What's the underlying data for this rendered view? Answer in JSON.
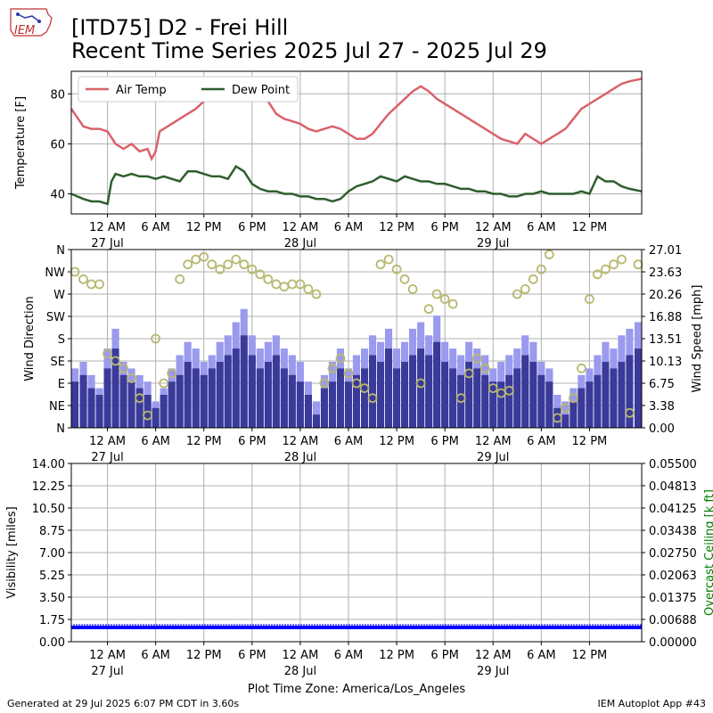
{
  "logo": {
    "text": "IEM"
  },
  "title_line1": "[ITD75] D2 - Frei Hill",
  "title_line2": "Recent Time Series 2025 Jul 27 - 2025 Jul 29",
  "footer_left": "Generated at 29 Jul 2025 6:07 PM CDT in 3.60s",
  "footer_right": "IEM Autoplot App #43",
  "xlabel_bottom": "Plot Time Zone: America/Los_Angeles",
  "colors": {
    "air_temp": "#d9626a",
    "dew_point": "#2e5e2e",
    "gust": "#9a9aee",
    "speed": "#3a3a9a",
    "direction_marker": "#b8b870",
    "visibility": "#0000ff",
    "ceiling_label": "#008000",
    "grid": "#b0b0b0"
  },
  "x_ticks": [
    {
      "hour": 0,
      "label": "12 AM",
      "date": "27 Jul"
    },
    {
      "hour": 6,
      "label": "6 AM",
      "date": ""
    },
    {
      "hour": 12,
      "label": "12 PM",
      "date": ""
    },
    {
      "hour": 18,
      "label": "6 PM",
      "date": ""
    },
    {
      "hour": 24,
      "label": "12 AM",
      "date": "28 Jul"
    },
    {
      "hour": 30,
      "label": "6 AM",
      "date": ""
    },
    {
      "hour": 36,
      "label": "12 PM",
      "date": ""
    },
    {
      "hour": 42,
      "label": "6 PM",
      "date": ""
    },
    {
      "hour": 48,
      "label": "12 AM",
      "date": "29 Jul"
    },
    {
      "hour": 54,
      "label": "6 AM",
      "date": ""
    },
    {
      "hour": 60,
      "label": "12 PM",
      "date": ""
    }
  ],
  "chart_data": [
    {
      "type": "line",
      "ylabel": "Temperature [F]",
      "ylim": [
        32,
        89
      ],
      "yticks": [
        40,
        60,
        80
      ],
      "xlim_hours": [
        -4.5,
        66.5
      ],
      "grid": true,
      "legend": "top-left",
      "series": [
        {
          "name": "Air Temp",
          "x": [
            -4.5,
            -3,
            -2,
            -1,
            0,
            1,
            2,
            3,
            4,
            5,
            5.5,
            6,
            6.5,
            7,
            8,
            9,
            10,
            11,
            12,
            13,
            14,
            15,
            16,
            17,
            18,
            19,
            20,
            21,
            22,
            23,
            24,
            25,
            26,
            27,
            28,
            29,
            30,
            31,
            32,
            33,
            34,
            35,
            36,
            37,
            38,
            39,
            40,
            41,
            42,
            43,
            44,
            45,
            46,
            47,
            48,
            49,
            50,
            51,
            52,
            53,
            54,
            55,
            56,
            57,
            58,
            59,
            60,
            61,
            62,
            63,
            64,
            65,
            66.5
          ],
          "y": [
            74,
            67,
            66,
            66,
            65,
            60,
            58,
            60,
            57,
            58,
            54,
            57,
            65,
            66,
            68,
            70,
            72,
            74,
            77,
            80,
            81,
            79,
            79,
            80,
            80,
            79,
            77,
            72,
            70,
            69,
            68,
            66,
            65,
            66,
            67,
            66,
            64,
            62,
            62,
            64,
            68,
            72,
            75,
            78,
            81,
            83,
            81,
            78,
            76,
            74,
            72,
            70,
            68,
            66,
            64,
            62,
            61,
            60,
            64,
            62,
            60,
            62,
            64,
            66,
            70,
            74,
            76,
            78,
            80,
            82,
            84,
            85,
            86
          ]
        },
        {
          "name": "Dew Point",
          "x": [
            -4.5,
            -3,
            -2,
            -1,
            0,
            0.5,
            1,
            2,
            3,
            4,
            5,
            6,
            7,
            8,
            9,
            10,
            11,
            12,
            13,
            14,
            15,
            16,
            17,
            18,
            19,
            20,
            21,
            22,
            23,
            24,
            25,
            26,
            27,
            28,
            29,
            30,
            31,
            32,
            33,
            34,
            35,
            36,
            37,
            38,
            39,
            40,
            41,
            42,
            43,
            44,
            45,
            46,
            47,
            48,
            49,
            50,
            51,
            52,
            53,
            54,
            55,
            56,
            57,
            58,
            59,
            60,
            61,
            62,
            63,
            64,
            65,
            66.5
          ],
          "y": [
            40,
            38,
            37,
            37,
            36,
            45,
            48,
            47,
            48,
            47,
            47,
            46,
            47,
            46,
            45,
            49,
            49,
            48,
            47,
            47,
            46,
            51,
            49,
            44,
            42,
            41,
            41,
            40,
            40,
            39,
            39,
            38,
            38,
            37,
            38,
            41,
            43,
            44,
            45,
            47,
            46,
            45,
            47,
            46,
            45,
            45,
            44,
            44,
            43,
            42,
            42,
            41,
            41,
            40,
            40,
            39,
            39,
            40,
            40,
            41,
            40,
            40,
            40,
            40,
            41,
            40,
            47,
            45,
            45,
            43,
            42,
            41
          ]
        }
      ]
    },
    {
      "type": "bar",
      "ylabel": "Wind Direction",
      "y2label": "Wind Speed [mph]",
      "direction_ticks": [
        "N",
        "NE",
        "E",
        "SE",
        "S",
        "SW",
        "W",
        "NW",
        "N"
      ],
      "speed_ticks": [
        0.0,
        3.38,
        6.75,
        10.13,
        13.51,
        16.88,
        20.26,
        23.63,
        27.01
      ],
      "ylim": [
        0,
        27.01
      ],
      "grid": true,
      "series": [
        {
          "name": "Gust",
          "x": [
            -4.5,
            -3,
            -2,
            -1,
            0,
            1,
            2,
            3,
            4,
            5,
            6,
            7,
            8,
            9,
            10,
            11,
            12,
            13,
            14,
            15,
            16,
            17,
            18,
            19,
            20,
            21,
            22,
            23,
            24,
            25,
            26,
            27,
            28,
            29,
            30,
            31,
            32,
            33,
            34,
            35,
            36,
            37,
            38,
            39,
            40,
            41,
            42,
            43,
            44,
            45,
            46,
            47,
            48,
            49,
            50,
            51,
            52,
            53,
            54,
            55,
            56,
            57,
            58,
            59,
            60,
            61,
            62,
            63,
            64,
            65,
            66.5
          ],
          "y": [
            9,
            10,
            8,
            6,
            12,
            15,
            10,
            9,
            8,
            7,
            4,
            6,
            9,
            11,
            13,
            12,
            10,
            11,
            13,
            14,
            16,
            18,
            14,
            12,
            13,
            14,
            12,
            11,
            10,
            7,
            4,
            8,
            10,
            12,
            9,
            11,
            12,
            14,
            13,
            15,
            12,
            13,
            15,
            16,
            14,
            17,
            13,
            12,
            11,
            13,
            12,
            11,
            9,
            10,
            11,
            12,
            14,
            13,
            10,
            9,
            5,
            4,
            6,
            8,
            9,
            11,
            13,
            12,
            14,
            15,
            16
          ]
        },
        {
          "name": "Speed",
          "x": [
            -4.5,
            -3,
            -2,
            -1,
            0,
            1,
            2,
            3,
            4,
            5,
            6,
            7,
            8,
            9,
            10,
            11,
            12,
            13,
            14,
            15,
            16,
            17,
            18,
            19,
            20,
            21,
            22,
            23,
            24,
            25,
            26,
            27,
            28,
            29,
            30,
            31,
            32,
            33,
            34,
            35,
            36,
            37,
            38,
            39,
            40,
            41,
            42,
            43,
            44,
            45,
            46,
            47,
            48,
            49,
            50,
            51,
            52,
            53,
            54,
            55,
            56,
            57,
            58,
            59,
            60,
            61,
            62,
            63,
            64,
            65,
            66.5
          ],
          "y": [
            7,
            8,
            6,
            5,
            9,
            12,
            8,
            7,
            6,
            5,
            3,
            5,
            7,
            8,
            10,
            9,
            8,
            9,
            10,
            11,
            12,
            14,
            11,
            9,
            10,
            11,
            9,
            8,
            7,
            5,
            2,
            6,
            7,
            9,
            7,
            8,
            9,
            11,
            10,
            12,
            9,
            10,
            11,
            12,
            11,
            13,
            10,
            9,
            8,
            10,
            9,
            8,
            7,
            7,
            8,
            9,
            11,
            10,
            8,
            7,
            3,
            2,
            4,
            6,
            7,
            8,
            10,
            9,
            10,
            11,
            12
          ]
        },
        {
          "name": "Direction",
          "x": [
            -4.5,
            -3,
            -2,
            -1,
            0,
            1,
            2,
            3,
            4,
            5,
            6,
            7,
            8,
            9,
            10,
            11,
            12,
            13,
            14,
            15,
            16,
            17,
            18,
            19,
            20,
            21,
            22,
            23,
            24,
            25,
            26,
            27,
            28,
            29,
            30,
            31,
            32,
            33,
            34,
            35,
            36,
            37,
            38,
            39,
            40,
            41,
            42,
            43,
            44,
            45,
            46,
            47,
            48,
            49,
            50,
            51,
            52,
            53,
            54,
            55,
            56,
            57,
            58,
            59,
            60,
            61,
            62,
            63,
            64,
            65,
            66.5
          ],
          "y": [
            315,
            300,
            290,
            290,
            150,
            135,
            120,
            100,
            60,
            25,
            180,
            90,
            110,
            300,
            330,
            340,
            345,
            330,
            320,
            330,
            340,
            330,
            320,
            310,
            300,
            290,
            285,
            290,
            290,
            280,
            270,
            90,
            120,
            140,
            110,
            90,
            80,
            60,
            330,
            340,
            320,
            300,
            280,
            90,
            240,
            270,
            260,
            250,
            60,
            110,
            140,
            120,
            80,
            70,
            75,
            270,
            280,
            300,
            320,
            350,
            20,
            40,
            60,
            120,
            260,
            310,
            320,
            330,
            340,
            30,
            330
          ]
        }
      ]
    },
    {
      "type": "bar",
      "ylabel": "Visibility [miles]",
      "y2label": "Overcast Ceiling [k ft]",
      "ylim": [
        0,
        14
      ],
      "yticks": [
        0.0,
        1.75,
        3.5,
        5.25,
        7.0,
        8.75,
        10.5,
        12.25,
        14.0
      ],
      "y2ticks": [
        0.0,
        0.00688,
        0.01375,
        0.02063,
        0.0275,
        0.03438,
        0.04125,
        0.04813,
        0.055
      ],
      "grid": true,
      "series": [
        {
          "name": "Visibility",
          "x_range_hours": [
            -4.5,
            66.5
          ],
          "value": 1.25
        }
      ]
    }
  ]
}
